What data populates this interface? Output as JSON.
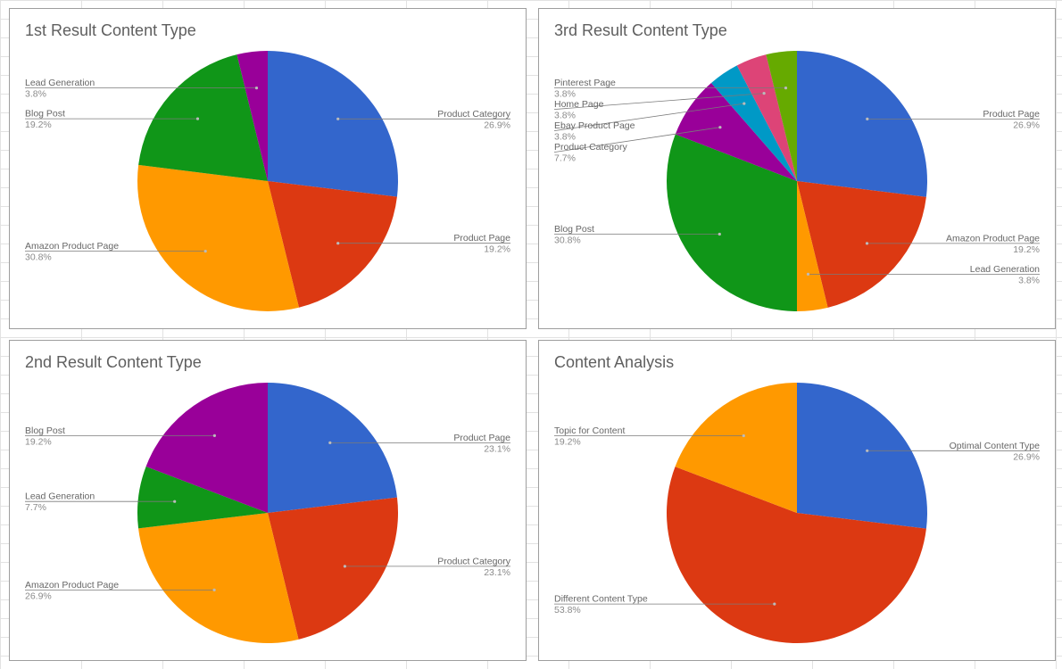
{
  "chart_data": [
    {
      "type": "pie",
      "title": "1st Result Content Type",
      "colors": [
        "#3366cc",
        "#dc3912",
        "#ff9900",
        "#109618",
        "#990099"
      ],
      "slices": [
        {
          "label": "Product Category",
          "value": 26.9,
          "display": "26.9%",
          "color": "#3366cc",
          "side": "right"
        },
        {
          "label": "Product Page",
          "value": 19.2,
          "display": "19.2%",
          "color": "#dc3912",
          "side": "right"
        },
        {
          "label": "Amazon Product Page",
          "value": 30.8,
          "display": "30.8%",
          "color": "#ff9900",
          "side": "left"
        },
        {
          "label": "Blog Post",
          "value": 19.2,
          "display": "19.2%",
          "color": "#109618",
          "side": "left"
        },
        {
          "label": "Lead Generation",
          "value": 3.8,
          "display": "3.8%",
          "color": "#990099",
          "side": "left"
        }
      ]
    },
    {
      "type": "pie",
      "title": "3rd Result Content Type",
      "colors": [
        "#3366cc",
        "#dc3912",
        "#ff9900",
        "#109618",
        "#990099",
        "#0099c6",
        "#dd4477",
        "#66aa00"
      ],
      "slices": [
        {
          "label": "Product Page",
          "value": 26.9,
          "display": "26.9%",
          "color": "#3366cc",
          "side": "right"
        },
        {
          "label": "Amazon Product Page",
          "value": 19.2,
          "display": "19.2%",
          "color": "#dc3912",
          "side": "right"
        },
        {
          "label": "Lead Generation",
          "value": 3.8,
          "display": "3.8%",
          "color": "#ff9900",
          "side": "right"
        },
        {
          "label": "Blog Post",
          "value": 30.8,
          "display": "30.8%",
          "color": "#109618",
          "side": "left"
        },
        {
          "label": "Product Category",
          "value": 7.7,
          "display": "7.7%",
          "color": "#990099",
          "side": "left"
        },
        {
          "label": "Ebay Product Page",
          "value": 3.8,
          "display": "3.8%",
          "color": "#0099c6",
          "side": "left"
        },
        {
          "label": "Home Page",
          "value": 3.8,
          "display": "3.8%",
          "color": "#dd4477",
          "side": "left"
        },
        {
          "label": "Pinterest Page",
          "value": 3.8,
          "display": "3.8%",
          "color": "#66aa00",
          "side": "left"
        }
      ]
    },
    {
      "type": "pie",
      "title": "2nd Result Content Type",
      "colors": [
        "#3366cc",
        "#dc3912",
        "#ff9900",
        "#109618",
        "#990099"
      ],
      "slices": [
        {
          "label": "Product Page",
          "value": 23.1,
          "display": "23.1%",
          "color": "#3366cc",
          "side": "right"
        },
        {
          "label": "Product Category",
          "value": 23.1,
          "display": "23.1%",
          "color": "#dc3912",
          "side": "right"
        },
        {
          "label": "Amazon Product Page",
          "value": 26.9,
          "display": "26.9%",
          "color": "#ff9900",
          "side": "left"
        },
        {
          "label": "Lead Generation",
          "value": 7.7,
          "display": "7.7%",
          "color": "#109618",
          "side": "left"
        },
        {
          "label": "Blog Post",
          "value": 19.2,
          "display": "19.2%",
          "color": "#990099",
          "side": "left"
        }
      ]
    },
    {
      "type": "pie",
      "title": "Content Analysis",
      "colors": [
        "#3366cc",
        "#dc3912",
        "#ff9900"
      ],
      "slices": [
        {
          "label": "Optimal Content Type",
          "value": 26.9,
          "display": "26.9%",
          "color": "#3366cc",
          "side": "right"
        },
        {
          "label": "Different Content Type",
          "value": 53.8,
          "display": "53.8%",
          "color": "#dc3912",
          "side": "left"
        },
        {
          "label": "Topic for Content",
          "value": 19.2,
          "display": "19.2%",
          "color": "#ff9900",
          "side": "left"
        }
      ]
    }
  ]
}
